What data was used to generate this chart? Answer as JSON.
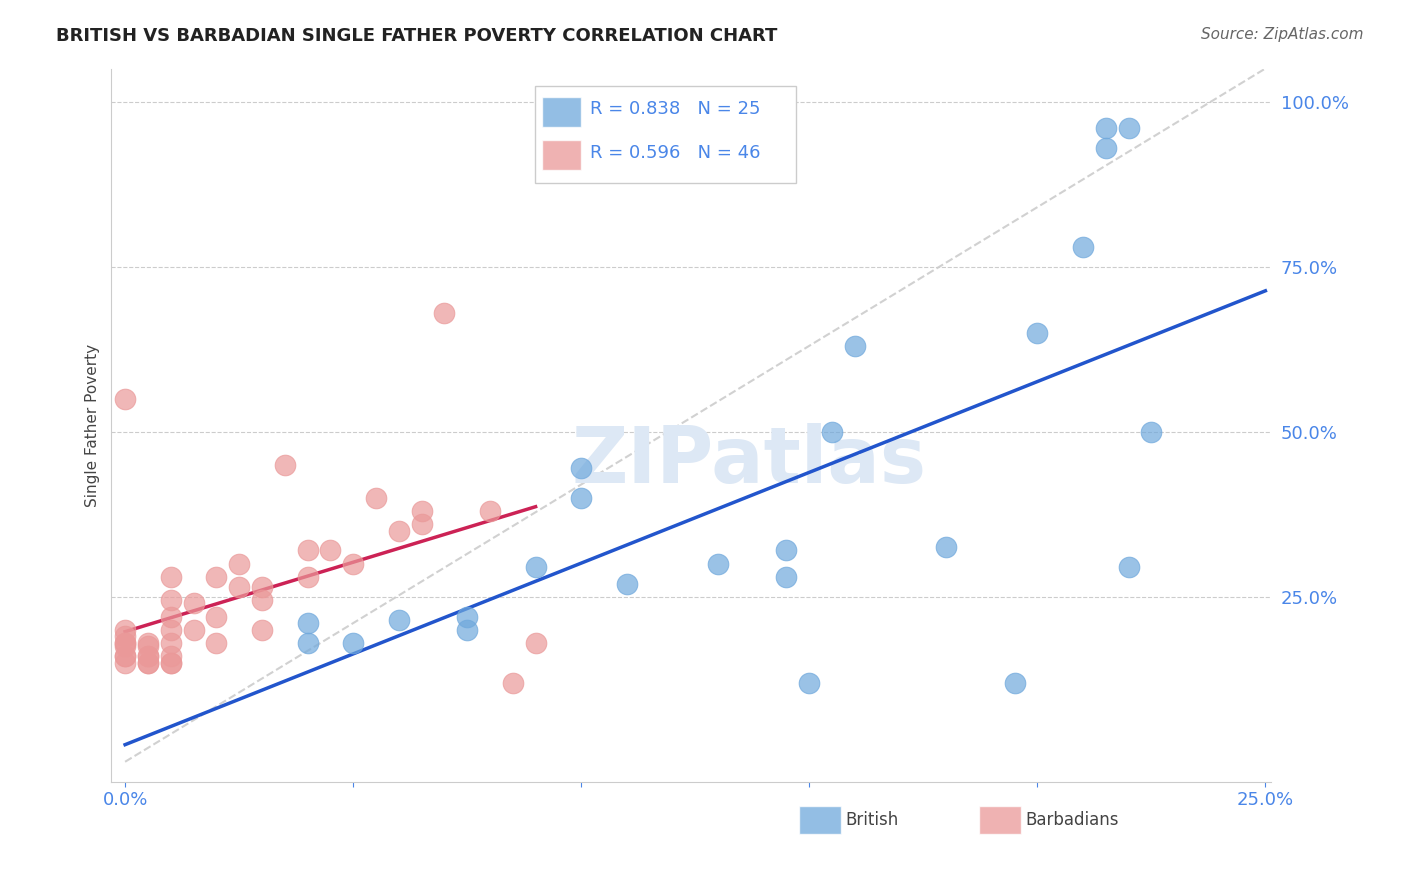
{
  "title": "BRITISH VS BARBADIAN SINGLE FATHER POVERTY CORRELATION CHART",
  "source": "Source: ZipAtlas.com",
  "ylabel_label": "Single Father Poverty",
  "x_max": 0.25,
  "y_max": 1.05,
  "x_tick_positions": [
    0.0,
    0.05,
    0.1,
    0.15,
    0.2,
    0.25
  ],
  "x_tick_labels": [
    "0.0%",
    "",
    "",
    "",
    "",
    "25.0%"
  ],
  "y_tick_positions": [
    0.25,
    0.5,
    0.75,
    1.0
  ],
  "y_tick_labels": [
    "25.0%",
    "50.0%",
    "75.0%",
    "100.0%"
  ],
  "blue_R": 0.838,
  "blue_N": 25,
  "pink_R": 0.596,
  "pink_N": 46,
  "legend1_label": "British",
  "legend2_label": "Barbadians",
  "blue_color": "#6fa8dc",
  "pink_color": "#ea9999",
  "blue_line_color": "#2255cc",
  "pink_line_color": "#cc2255",
  "legend_text_color": "#4a86e8",
  "watermark": "ZIPatlas",
  "blue_points_x": [
    0.04,
    0.04,
    0.05,
    0.06,
    0.075,
    0.075,
    0.09,
    0.1,
    0.1,
    0.11,
    0.13,
    0.145,
    0.145,
    0.15,
    0.155,
    0.16,
    0.18,
    0.195,
    0.2,
    0.21,
    0.215,
    0.215,
    0.22,
    0.22,
    0.225
  ],
  "blue_points_y": [
    0.18,
    0.21,
    0.18,
    0.215,
    0.2,
    0.22,
    0.295,
    0.4,
    0.445,
    0.27,
    0.3,
    0.28,
    0.32,
    0.12,
    0.5,
    0.63,
    0.325,
    0.12,
    0.65,
    0.78,
    0.93,
    0.96,
    0.96,
    0.295,
    0.5
  ],
  "pink_points_x": [
    0.0,
    0.0,
    0.0,
    0.0,
    0.0,
    0.0,
    0.0,
    0.0,
    0.0,
    0.005,
    0.005,
    0.005,
    0.005,
    0.005,
    0.005,
    0.01,
    0.01,
    0.01,
    0.01,
    0.01,
    0.01,
    0.01,
    0.01,
    0.015,
    0.015,
    0.02,
    0.02,
    0.02,
    0.025,
    0.025,
    0.03,
    0.03,
    0.03,
    0.035,
    0.04,
    0.04,
    0.045,
    0.05,
    0.055,
    0.06,
    0.065,
    0.065,
    0.07,
    0.08,
    0.085,
    0.09
  ],
  "pink_points_y": [
    0.15,
    0.16,
    0.16,
    0.175,
    0.18,
    0.18,
    0.19,
    0.2,
    0.55,
    0.15,
    0.15,
    0.16,
    0.16,
    0.175,
    0.18,
    0.15,
    0.15,
    0.16,
    0.18,
    0.2,
    0.22,
    0.245,
    0.28,
    0.2,
    0.24,
    0.18,
    0.22,
    0.28,
    0.265,
    0.3,
    0.2,
    0.245,
    0.265,
    0.45,
    0.28,
    0.32,
    0.32,
    0.3,
    0.4,
    0.35,
    0.36,
    0.38,
    0.68,
    0.38,
    0.12,
    0.18
  ]
}
